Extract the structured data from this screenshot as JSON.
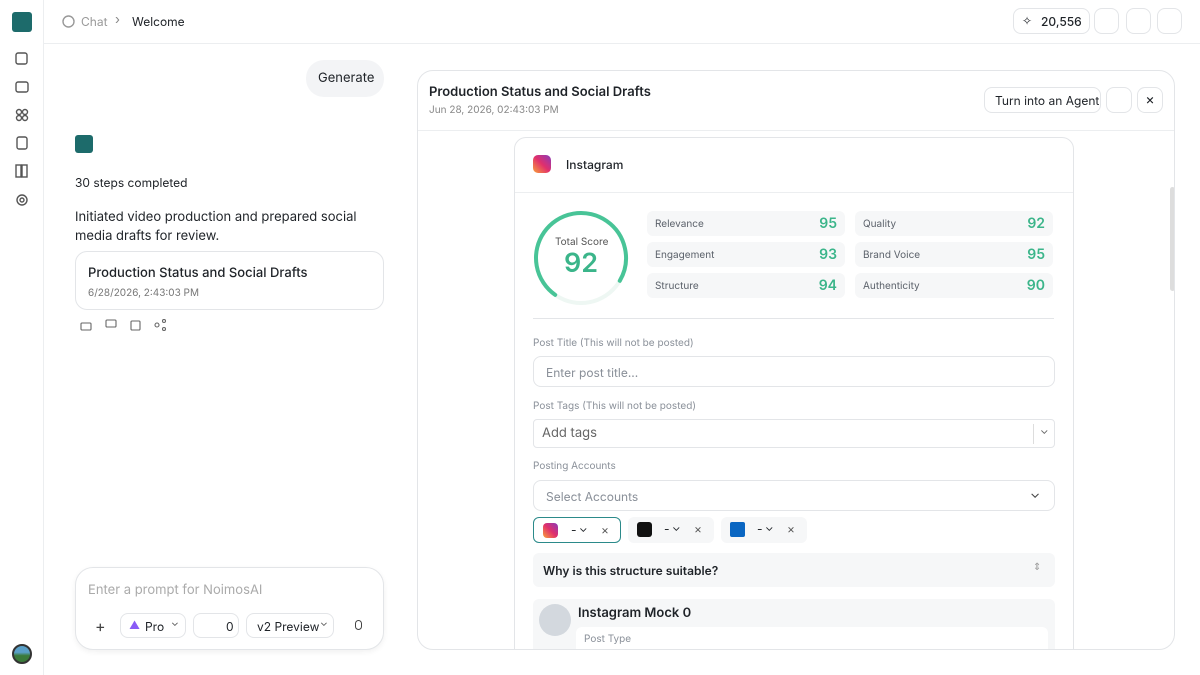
{
  "breadcrumb": [
    "Chat",
    "Welcome"
  ],
  "credits": "20,556",
  "chat": {
    "user_message": "Generate",
    "steps": "30 steps completed",
    "summary": "Initiated video production and prepared social media drafts for review.",
    "card_title": "Production Status and Social Drafts",
    "card_date": "6/28/2026, 2:43:03 PM"
  },
  "prompt": {
    "placeholder": "Enter a prompt for NoimosAI",
    "mode": "Pro",
    "count": "0",
    "model": "v2 Preview"
  },
  "panel": {
    "title": "Production Status and Social Drafts",
    "date": "Jun 28, 2026, 02:43:03 PM",
    "agent_button": "Turn into an Agent"
  },
  "instagram_card": {
    "platform": "Instagram",
    "total_score": {
      "label": "Total Score",
      "value": 92
    },
    "metrics": [
      {
        "name": "Relevance",
        "value": 95
      },
      {
        "name": "Quality",
        "value": 92
      },
      {
        "name": "Engagement",
        "value": 93
      },
      {
        "name": "Brand Voice",
        "value": 95
      },
      {
        "name": "Structure",
        "value": 94
      },
      {
        "name": "Authenticity",
        "value": 90
      }
    ],
    "post_title_label": "Post Title (This will not be posted)",
    "post_title_placeholder": "Enter post title...",
    "tags_label": "Post Tags (This will not be posted)",
    "tags_placeholder": "Add tags",
    "accounts_label": "Posting Accounts",
    "accounts_placeholder": "Select Accounts",
    "account_chips": [
      "-",
      "-",
      "-"
    ],
    "question": "Why is this structure suitable?",
    "mock_title": "Instagram Mock 0",
    "mock_field": "Post Type"
  }
}
